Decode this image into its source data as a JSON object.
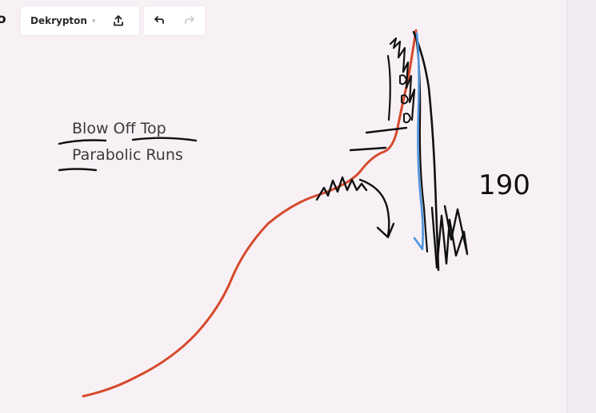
{
  "toolbar": {
    "logo_text": "o",
    "document_name": "Dekrypton",
    "caret": "▾",
    "icons": [
      "share-icon",
      "undo-icon",
      "redo-icon"
    ]
  },
  "canvas": {
    "text_lines": [
      "Blow Off Top",
      "Parabolic Runs"
    ],
    "annotation": "190"
  },
  "colors": {
    "price_curve": "#d64a2c",
    "ink": "#111111",
    "blue_line": "#4e95e0",
    "background": "#f7f1f6"
  }
}
